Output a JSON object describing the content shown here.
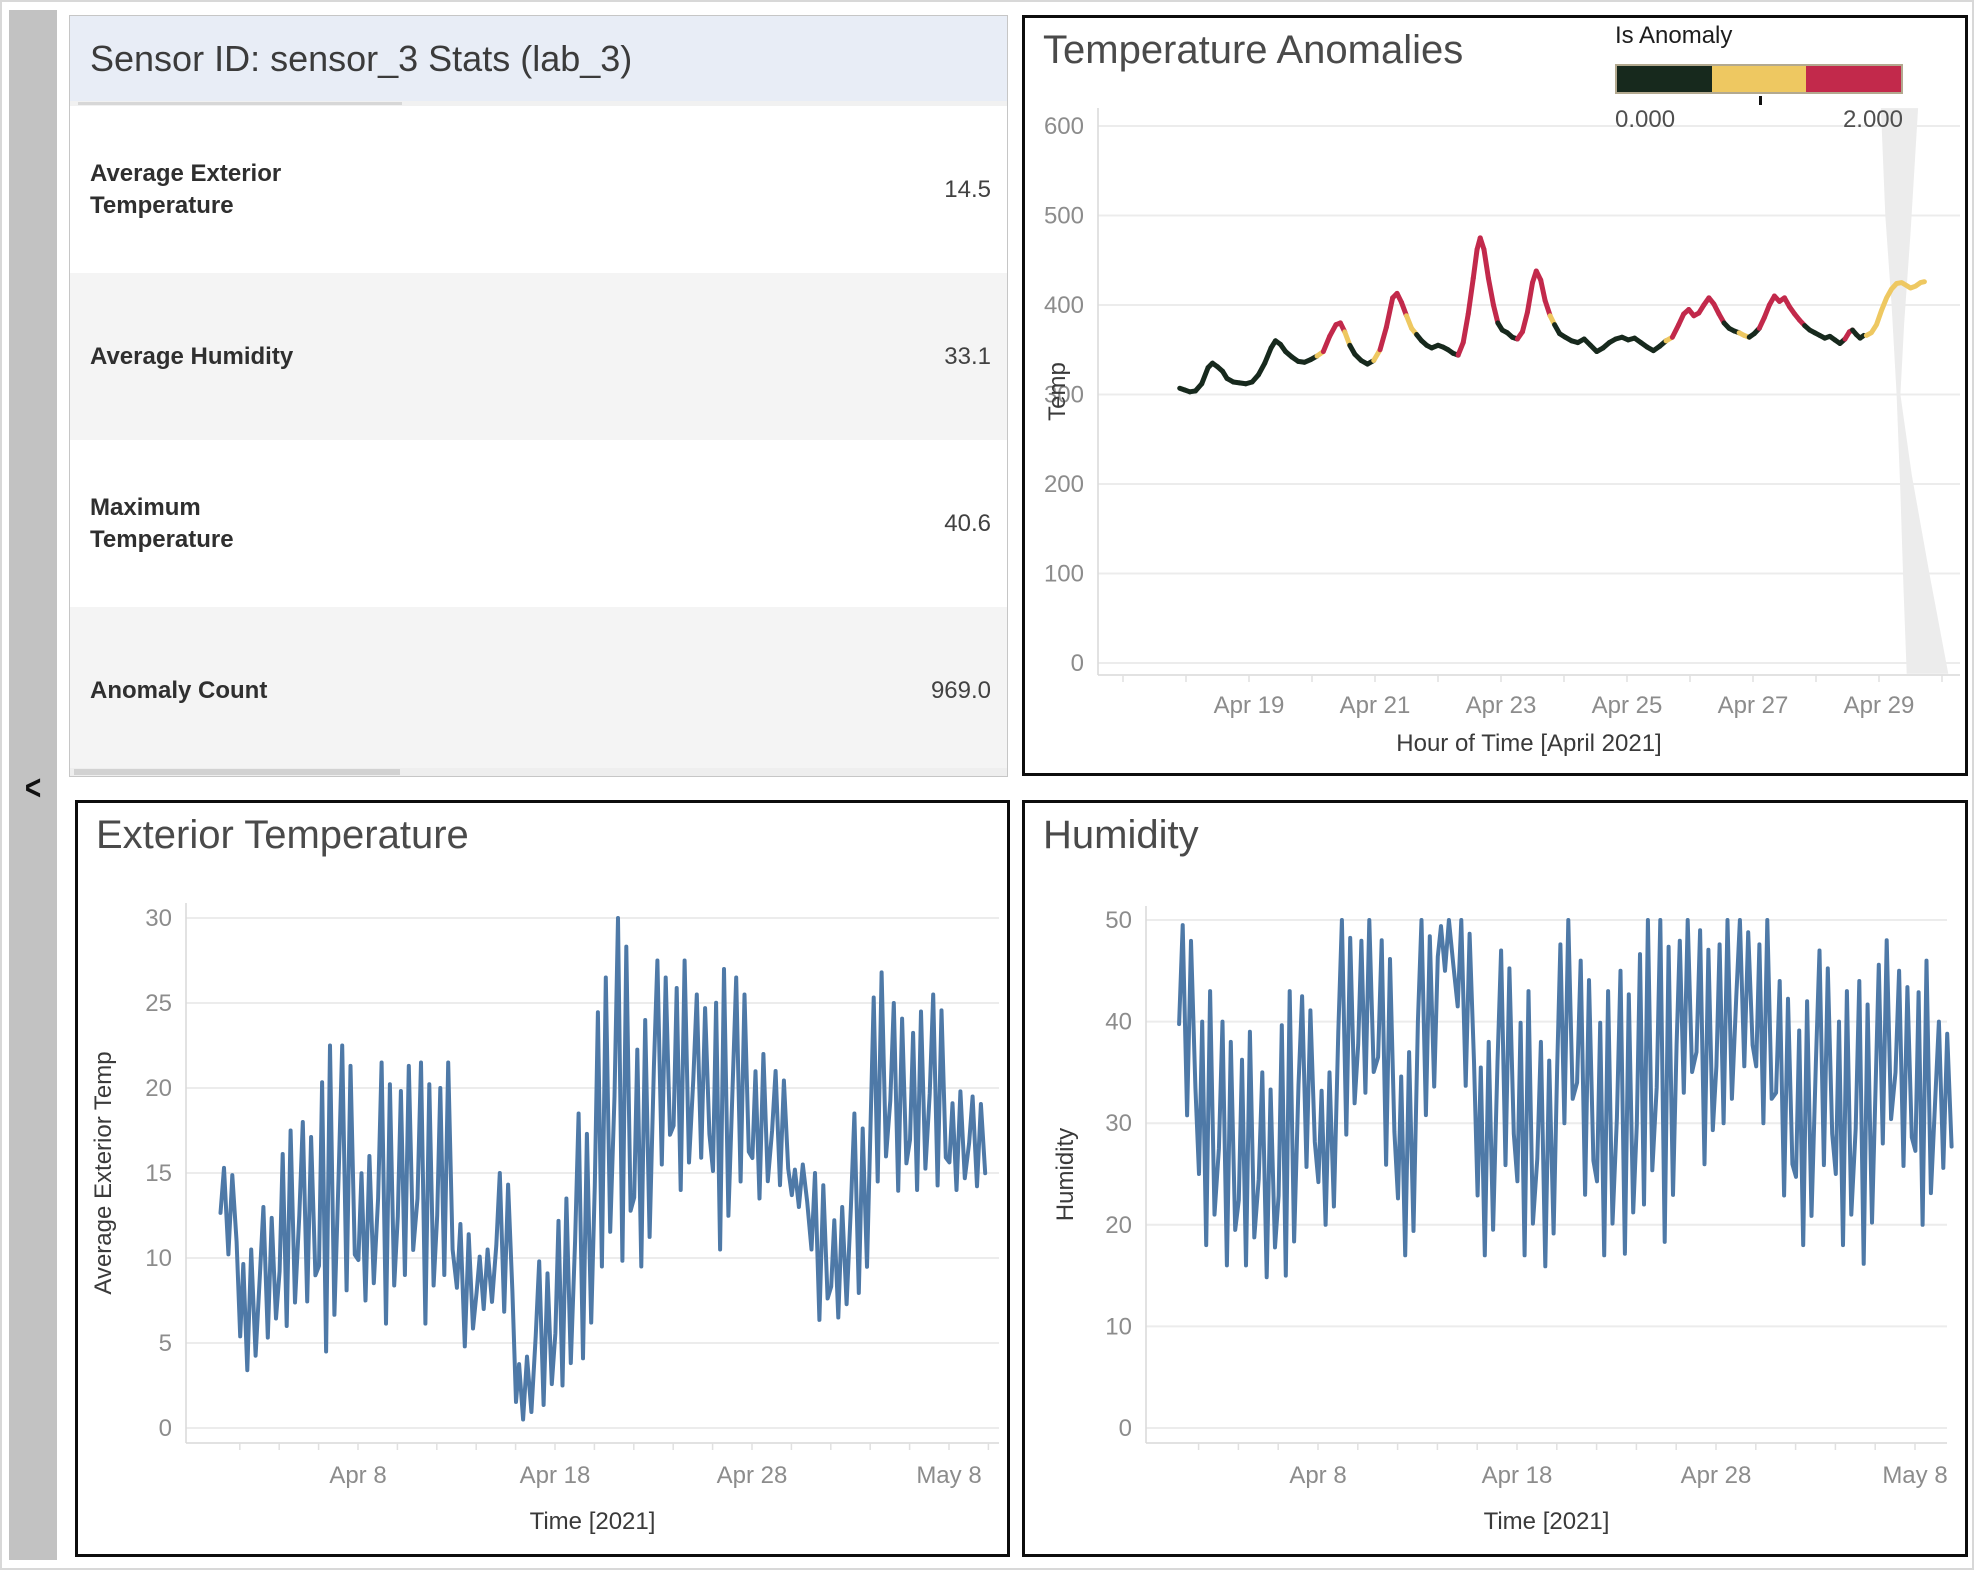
{
  "sidebar": {
    "collapse_label": "<"
  },
  "stats_panel": {
    "title": "Sensor ID: sensor_3 Stats (lab_3)",
    "rows": [
      {
        "label": "Average Exterior Temperature",
        "value": "14.5"
      },
      {
        "label": "Average Humidity",
        "value": "33.1"
      },
      {
        "label": "Maximum Temperature",
        "value": "40.6"
      },
      {
        "label": "Anomaly Count",
        "value": "969.0"
      }
    ]
  },
  "anomalies_panel": {
    "title": "Temperature Anomalies",
    "legend": {
      "title": "Is Anomaly",
      "min": "0.000",
      "max": "2.000",
      "colors": [
        "#17291d",
        "#eec861",
        "#c2294b"
      ],
      "border_color": "#b3a98f"
    }
  },
  "exterior_panel": {
    "title": "Exterior Temperature"
  },
  "humidity_panel": {
    "title": "Humidity"
  },
  "chart_data": [
    {
      "id": "anomalies",
      "type": "line",
      "title": "Temperature Anomalies",
      "xlabel": "Hour of Time [April 2021]",
      "ylabel": "Temp",
      "ylim": [
        0,
        600
      ],
      "yticks": [
        0,
        100,
        200,
        300,
        400,
        500,
        600
      ],
      "xticks": [
        {
          "label": "Apr 19",
          "day": 19
        },
        {
          "label": "Apr 21",
          "day": 21
        },
        {
          "label": "Apr 23",
          "day": 23
        },
        {
          "label": "Apr 25",
          "day": 25
        },
        {
          "label": "Apr 27",
          "day": 27
        },
        {
          "label": "Apr 29",
          "day": 29
        }
      ],
      "legend_title": "Is Anomaly",
      "anomaly_colors": [
        "#17291d",
        "#eec861",
        "#c2294b"
      ],
      "forecast_color": "#eec861",
      "band_color": "#ececec",
      "points": [
        [
          17.9,
          307,
          0
        ],
        [
          17.98,
          305,
          0
        ],
        [
          18.06,
          303,
          0
        ],
        [
          18.15,
          304,
          0
        ],
        [
          18.25,
          312,
          0
        ],
        [
          18.35,
          330,
          0
        ],
        [
          18.42,
          335,
          0
        ],
        [
          18.5,
          331,
          0
        ],
        [
          18.58,
          326,
          0
        ],
        [
          18.65,
          318,
          0
        ],
        [
          18.75,
          314,
          0
        ],
        [
          18.85,
          313,
          0
        ],
        [
          18.95,
          312,
          0
        ],
        [
          19.05,
          314,
          0
        ],
        [
          19.15,
          322,
          0
        ],
        [
          19.25,
          335,
          0
        ],
        [
          19.35,
          352,
          0
        ],
        [
          19.42,
          360,
          0
        ],
        [
          19.5,
          356,
          0
        ],
        [
          19.58,
          348,
          0
        ],
        [
          19.68,
          342,
          0
        ],
        [
          19.78,
          337,
          0
        ],
        [
          19.88,
          336,
          0
        ],
        [
          19.98,
          339,
          0
        ],
        [
          20.08,
          343,
          0
        ],
        [
          20.18,
          348,
          1
        ],
        [
          20.28,
          365,
          2
        ],
        [
          20.38,
          378,
          2
        ],
        [
          20.45,
          380,
          2
        ],
        [
          20.52,
          370,
          2
        ],
        [
          20.6,
          355,
          1
        ],
        [
          20.68,
          345,
          0
        ],
        [
          20.78,
          338,
          0
        ],
        [
          20.88,
          334,
          0
        ],
        [
          20.98,
          338,
          0
        ],
        [
          21.08,
          350,
          1
        ],
        [
          21.18,
          375,
          2
        ],
        [
          21.28,
          408,
          2
        ],
        [
          21.35,
          413,
          2
        ],
        [
          21.42,
          403,
          2
        ],
        [
          21.5,
          388,
          2
        ],
        [
          21.58,
          374,
          1
        ],
        [
          21.66,
          367,
          1
        ],
        [
          21.74,
          360,
          0
        ],
        [
          21.82,
          355,
          0
        ],
        [
          21.9,
          352,
          0
        ],
        [
          22.0,
          355,
          0
        ],
        [
          22.08,
          353,
          0
        ],
        [
          22.16,
          350,
          0
        ],
        [
          22.24,
          346,
          0
        ],
        [
          22.32,
          344,
          0
        ],
        [
          22.4,
          358,
          2
        ],
        [
          22.48,
          390,
          2
        ],
        [
          22.56,
          430,
          2
        ],
        [
          22.62,
          462,
          2
        ],
        [
          22.67,
          475,
          2
        ],
        [
          22.73,
          462,
          2
        ],
        [
          22.8,
          430,
          2
        ],
        [
          22.88,
          400,
          2
        ],
        [
          22.95,
          380,
          2
        ],
        [
          23.02,
          372,
          0
        ],
        [
          23.1,
          369,
          0
        ],
        [
          23.18,
          364,
          0
        ],
        [
          23.26,
          362,
          0
        ],
        [
          23.34,
          370,
          2
        ],
        [
          23.42,
          392,
          2
        ],
        [
          23.5,
          425,
          2
        ],
        [
          23.56,
          438,
          2
        ],
        [
          23.63,
          428,
          2
        ],
        [
          23.7,
          405,
          2
        ],
        [
          23.78,
          388,
          2
        ],
        [
          23.85,
          378,
          1
        ],
        [
          23.93,
          368,
          0
        ],
        [
          24.02,
          364,
          0
        ],
        [
          24.12,
          360,
          0
        ],
        [
          24.22,
          358,
          0
        ],
        [
          24.32,
          362,
          0
        ],
        [
          24.42,
          355,
          0
        ],
        [
          24.52,
          348,
          0
        ],
        [
          24.62,
          352,
          0
        ],
        [
          24.72,
          358,
          0
        ],
        [
          24.82,
          362,
          0
        ],
        [
          24.92,
          364,
          0
        ],
        [
          25.02,
          361,
          0
        ],
        [
          25.12,
          363,
          0
        ],
        [
          25.22,
          358,
          0
        ],
        [
          25.32,
          353,
          0
        ],
        [
          25.42,
          349,
          0
        ],
        [
          25.52,
          354,
          0
        ],
        [
          25.62,
          360,
          0
        ],
        [
          25.72,
          364,
          1
        ],
        [
          25.82,
          378,
          2
        ],
        [
          25.9,
          390,
          2
        ],
        [
          25.98,
          395,
          2
        ],
        [
          26.06,
          388,
          2
        ],
        [
          26.14,
          391,
          2
        ],
        [
          26.22,
          400,
          2
        ],
        [
          26.3,
          408,
          2
        ],
        [
          26.38,
          401,
          2
        ],
        [
          26.46,
          390,
          2
        ],
        [
          26.54,
          380,
          2
        ],
        [
          26.62,
          374,
          0
        ],
        [
          26.7,
          371,
          0
        ],
        [
          26.78,
          369,
          0
        ],
        [
          26.86,
          366,
          1
        ],
        [
          26.94,
          364,
          1
        ],
        [
          27.02,
          368,
          0
        ],
        [
          27.1,
          374,
          0
        ],
        [
          27.18,
          386,
          2
        ],
        [
          27.26,
          400,
          2
        ],
        [
          27.34,
          410,
          2
        ],
        [
          27.42,
          404,
          2
        ],
        [
          27.5,
          408,
          2
        ],
        [
          27.58,
          398,
          2
        ],
        [
          27.66,
          390,
          2
        ],
        [
          27.74,
          383,
          2
        ],
        [
          27.82,
          377,
          2
        ],
        [
          27.9,
          372,
          0
        ],
        [
          27.98,
          369,
          0
        ],
        [
          28.06,
          366,
          0
        ],
        [
          28.14,
          363,
          0
        ],
        [
          28.22,
          365,
          0
        ],
        [
          28.3,
          361,
          0
        ],
        [
          28.38,
          357,
          0
        ],
        [
          28.46,
          362,
          0
        ],
        [
          28.53,
          370,
          2
        ],
        [
          28.58,
          372,
          2
        ],
        [
          28.64,
          367,
          0
        ],
        [
          28.7,
          363,
          0
        ],
        [
          28.76,
          366,
          0
        ]
      ],
      "forecast_points": [
        [
          28.8,
          366
        ],
        [
          28.88,
          369
        ],
        [
          28.96,
          378
        ],
        [
          29.04,
          394
        ],
        [
          29.12,
          408
        ],
        [
          29.2,
          418
        ],
        [
          29.28,
          424
        ],
        [
          29.36,
          425
        ],
        [
          29.43,
          422
        ],
        [
          29.5,
          419
        ],
        [
          29.58,
          421
        ],
        [
          29.66,
          425
        ],
        [
          29.72,
          426
        ]
      ],
      "forecast_band": [
        [
          29.03,
          620
        ],
        [
          29.62,
          620
        ],
        [
          29.5,
          480
        ],
        [
          29.4,
          380
        ],
        [
          29.34,
          300
        ],
        [
          29.52,
          210
        ],
        [
          29.8,
          100
        ],
        [
          30.1,
          -12
        ],
        [
          29.44,
          -12
        ],
        [
          29.39,
          80
        ],
        [
          29.34,
          190
        ],
        [
          29.28,
          300
        ],
        [
          29.2,
          400
        ],
        [
          29.1,
          500
        ],
        [
          29.03,
          620
        ]
      ]
    },
    {
      "id": "exterior",
      "type": "line",
      "title": "Exterior Temperature",
      "xlabel": "Time [2021]",
      "ylabel": "Average Exterior Temp",
      "ylim": [
        0,
        30
      ],
      "yticks": [
        0,
        5,
        10,
        15,
        20,
        25,
        30
      ],
      "xticks": [
        {
          "label": "Apr 8",
          "day": 8
        },
        {
          "label": "Apr 18",
          "day": 18
        },
        {
          "label": "Apr 28",
          "day": 28
        },
        {
          "label": "May 8",
          "day": 38
        }
      ],
      "line_color": "#4e79a7",
      "day_start": 1,
      "daily_envelope": [
        [
          10,
          15.3
        ],
        [
          3.4,
          10.5
        ],
        [
          5,
          13
        ],
        [
          6,
          17.5
        ],
        [
          7,
          18
        ],
        [
          4.5,
          22.5
        ],
        [
          7.5,
          22.5
        ],
        [
          7.5,
          16
        ],
        [
          5.5,
          21.5
        ],
        [
          9,
          21.3
        ],
        [
          5.5,
          21.5
        ],
        [
          9,
          21.5
        ],
        [
          4.5,
          12
        ],
        [
          7,
          10.5
        ],
        [
          6.5,
          15
        ],
        [
          0.5,
          4.2
        ],
        [
          1,
          9.8
        ],
        [
          2.5,
          13.5
        ],
        [
          3.5,
          18.5
        ],
        [
          9.5,
          26.5
        ],
        [
          9,
          30
        ],
        [
          9.5,
          24
        ],
        [
          15,
          27.5
        ],
        [
          14,
          27.5
        ],
        [
          15.5,
          25.5
        ],
        [
          10.5,
          27
        ],
        [
          14,
          26.5
        ],
        [
          13.5,
          22
        ],
        [
          14,
          21
        ],
        [
          13,
          15.5
        ],
        [
          6,
          15
        ],
        [
          6.5,
          13
        ],
        [
          7.5,
          18.5
        ],
        [
          14.5,
          26.8
        ],
        [
          13.5,
          25
        ],
        [
          14,
          24.5
        ],
        [
          13.8,
          25.5
        ],
        [
          14,
          19.8
        ],
        [
          14,
          19.5
        ]
      ],
      "intraday_pattern_a": [
        [
          0.02,
          0.5
        ],
        [
          0.2,
          1.0
        ],
        [
          0.42,
          0.04
        ],
        [
          0.62,
          0.92
        ],
        [
          0.84,
          0.18
        ]
      ],
      "intraday_pattern_b": [
        [
          0.02,
          0.28
        ],
        [
          0.18,
          0.88
        ],
        [
          0.38,
          0.0
        ],
        [
          0.58,
          1.0
        ],
        [
          0.8,
          0.12
        ]
      ]
    },
    {
      "id": "humidity",
      "type": "line",
      "title": "Humidity",
      "xlabel": "Time [2021]",
      "ylabel": "Humidity",
      "ylim": [
        0,
        50
      ],
      "yticks": [
        0,
        10,
        20,
        30,
        40,
        50
      ],
      "xticks": [
        {
          "label": "Apr 8",
          "day": 8
        },
        {
          "label": "Apr 18",
          "day": 18
        },
        {
          "label": "Apr 28",
          "day": 28
        },
        {
          "label": "May 8",
          "day": 38
        }
      ],
      "line_color": "#4e79a7",
      "day_start": 1,
      "daily_envelope": [
        [
          30,
          49.5
        ],
        [
          18,
          43
        ],
        [
          15,
          40
        ],
        [
          16,
          39
        ],
        [
          14,
          35
        ],
        [
          15,
          43
        ],
        [
          25,
          42.5
        ],
        [
          20,
          35
        ],
        [
          28,
          50
        ],
        [
          33,
          50
        ],
        [
          25,
          48
        ],
        [
          17,
          37
        ],
        [
          30,
          50
        ],
        [
          45,
          50
        ],
        [
          33,
          50
        ],
        [
          17,
          38
        ],
        [
          25,
          47
        ],
        [
          17,
          43
        ],
        [
          15,
          38
        ],
        [
          30,
          50
        ],
        [
          22,
          46
        ],
        [
          17,
          43
        ],
        [
          16,
          45
        ],
        [
          22,
          50
        ],
        [
          17,
          50
        ],
        [
          33,
          50
        ],
        [
          25,
          49
        ],
        [
          30,
          50
        ],
        [
          35,
          50
        ],
        [
          30,
          50
        ],
        [
          22,
          44
        ],
        [
          18,
          42
        ],
        [
          25,
          47
        ],
        [
          18,
          43
        ],
        [
          15,
          44
        ],
        [
          28,
          48
        ],
        [
          25,
          45
        ],
        [
          20,
          46
        ],
        [
          25,
          40
        ]
      ],
      "intraday_pattern_a": [
        [
          0.02,
          0.5
        ],
        [
          0.2,
          1.0
        ],
        [
          0.42,
          0.04
        ],
        [
          0.62,
          0.92
        ],
        [
          0.84,
          0.18
        ]
      ],
      "intraday_pattern_b": [
        [
          0.02,
          0.28
        ],
        [
          0.18,
          0.88
        ],
        [
          0.38,
          0.0
        ],
        [
          0.58,
          1.0
        ],
        [
          0.8,
          0.12
        ]
      ]
    }
  ]
}
